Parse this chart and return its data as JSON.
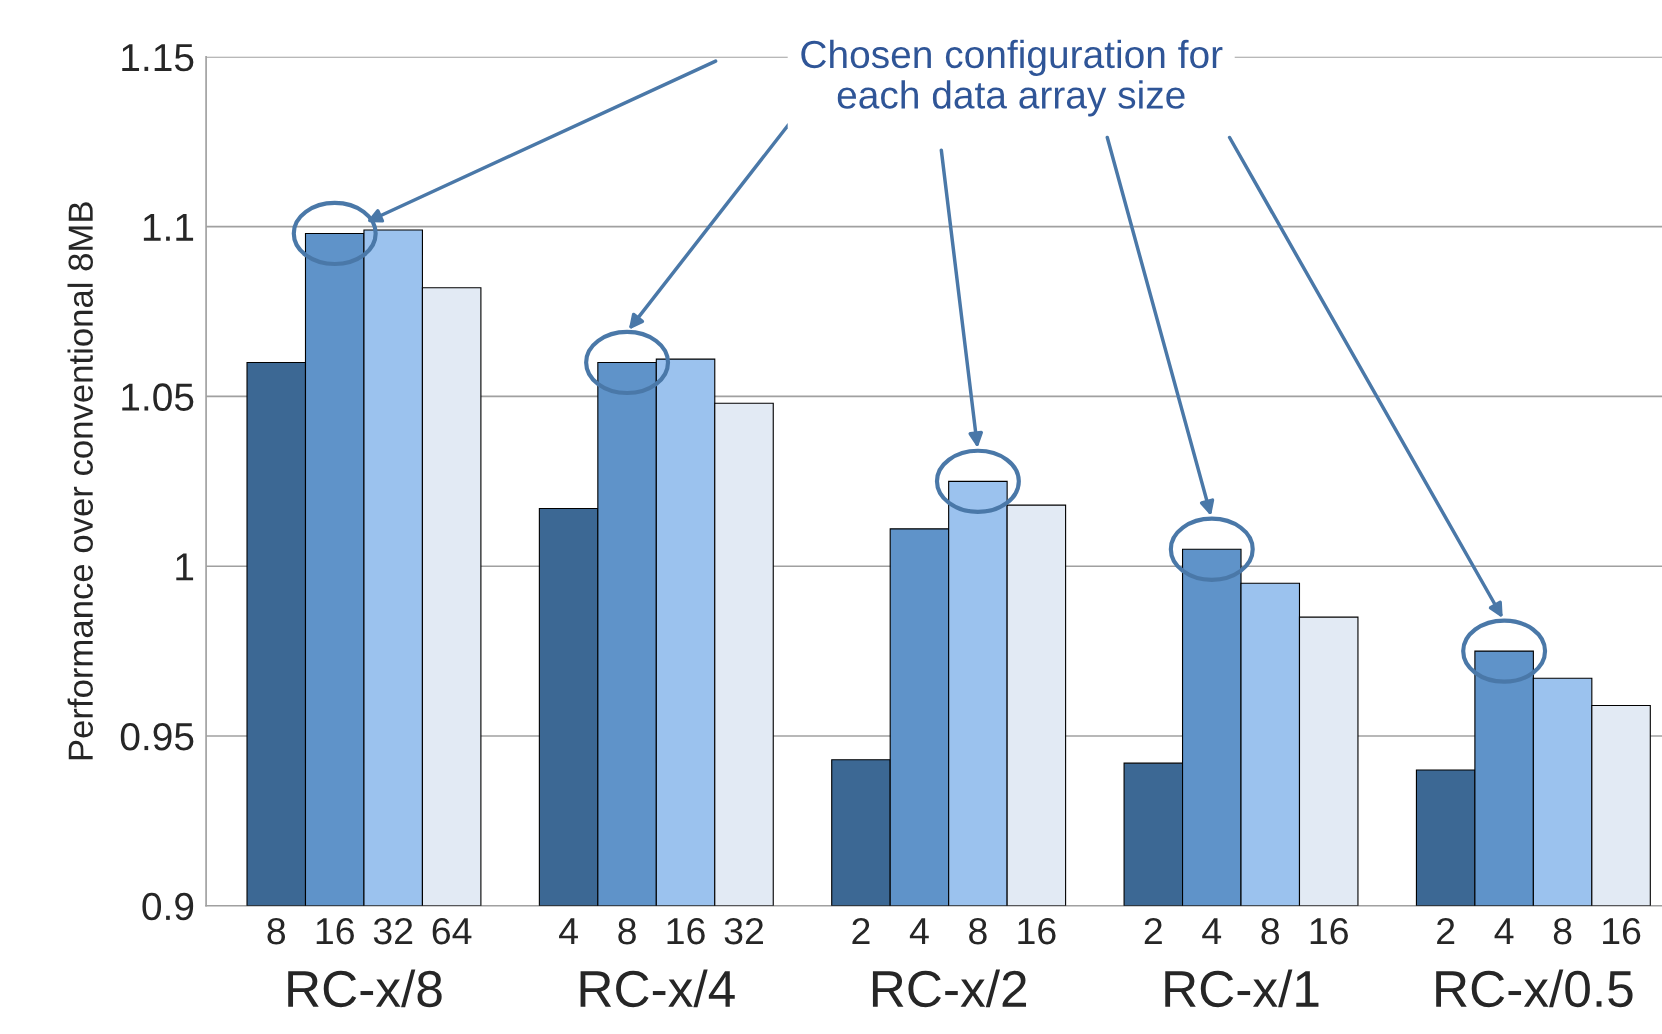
{
  "chart_data": {
    "type": "bar",
    "ylabel": "Performance over conventional 8MB",
    "categories": [
      "8",
      "16",
      "32",
      "64",
      null,
      "4",
      "8",
      "16",
      "32",
      null,
      "2",
      "4",
      "8",
      "16",
      null,
      "2",
      "4",
      "8",
      "16",
      null,
      "2",
      "4",
      "8",
      "16"
    ],
    "values": [
      1.06,
      1.098,
      1.099,
      1.082,
      null,
      1.017,
      1.06,
      1.061,
      1.048,
      null,
      0.943,
      1.011,
      1.025,
      1.018,
      null,
      0.942,
      1.005,
      0.995,
      0.985,
      null,
      0.94,
      0.975,
      0.967,
      0.959
    ],
    "colors": [
      "#3c6894",
      "#5f93c9",
      "#9bc2ee",
      "#e2eaf4",
      null,
      "#3c6894",
      "#5f93c9",
      "#9bc2ee",
      "#e2eaf4",
      null,
      "#3c6894",
      "#5f93c9",
      "#9bc2ee",
      "#e2eaf4",
      null,
      "#3c6894",
      "#5f93c9",
      "#9bc2ee",
      "#e2eaf4",
      null,
      "#3c6894",
      "#5f93c9",
      "#9bc2ee",
      "#e2eaf4"
    ],
    "annotations": [
      "Chosen configuration for\neach data array size",
      "RC-x/8",
      "RC-x/4",
      "RC-x/2",
      "RC-x/1",
      "RC-x/0.5"
    ],
    "ylim": [
      0.9,
      1.15
    ],
    "yticks": [
      0.9,
      0.95,
      1,
      1.05,
      1.1,
      1.15
    ],
    "grid": "y",
    "legend": false
  }
}
